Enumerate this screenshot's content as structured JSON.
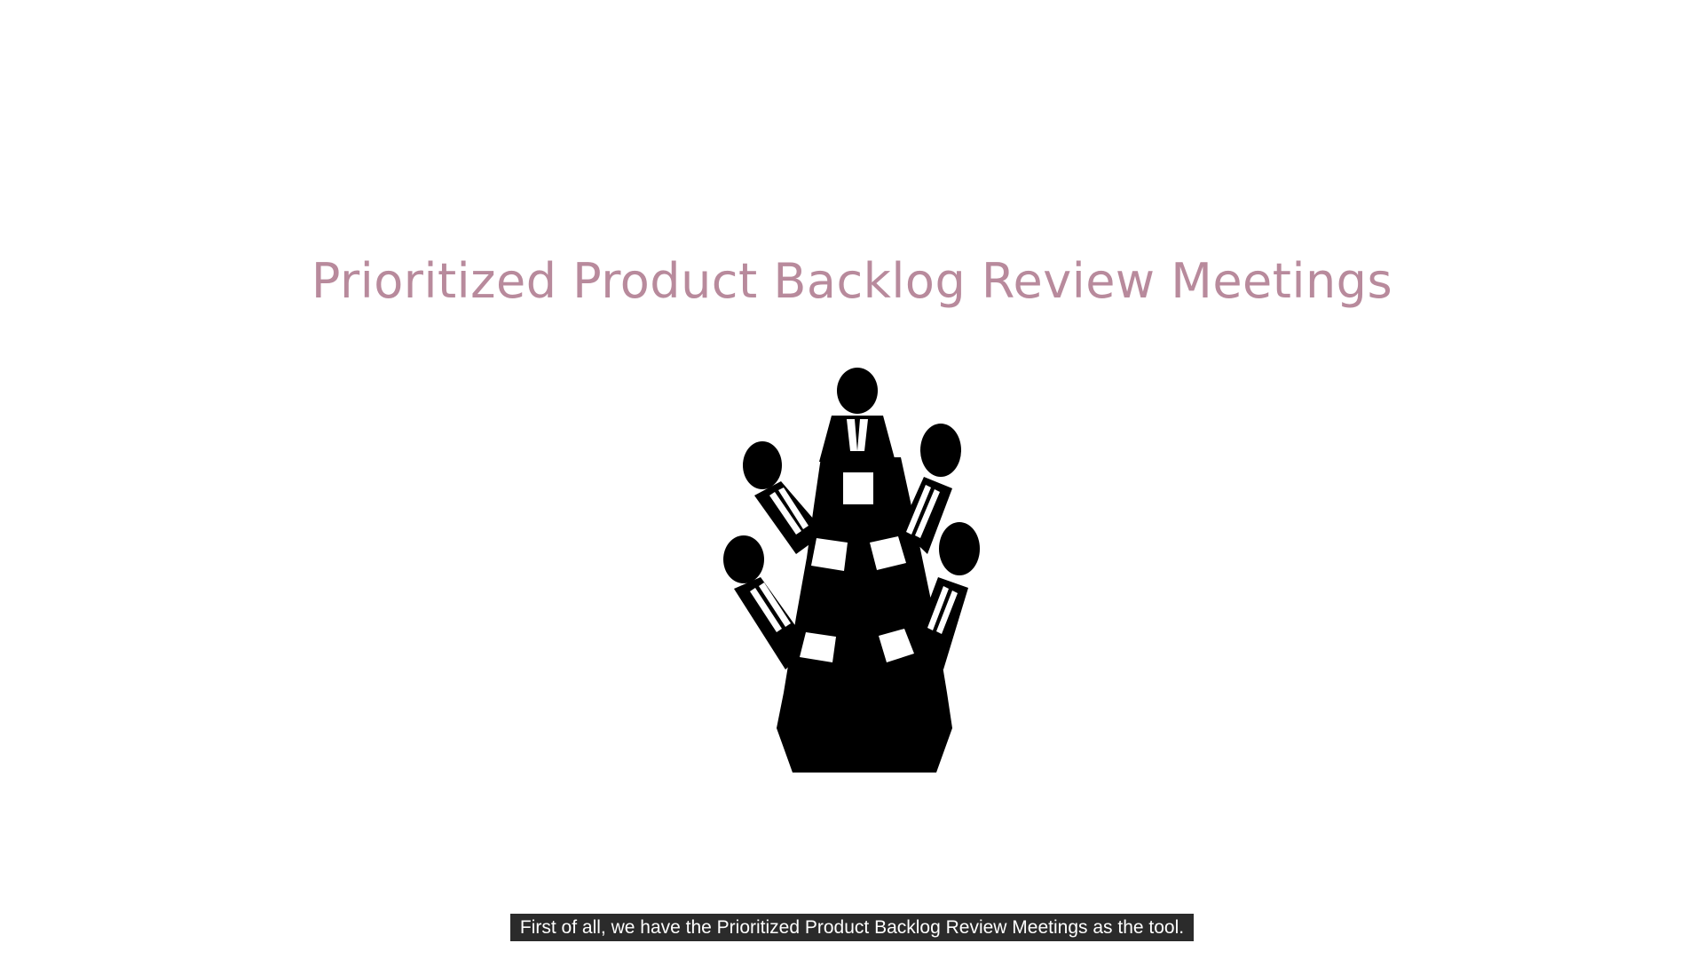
{
  "slide": {
    "title": "Prioritized Product Backlog Review Meetings",
    "title_color": "#b88a9c",
    "illustration_icon": "meeting-table-people-icon",
    "illustration_color": "#000000"
  },
  "caption": {
    "text": "First of all, we have the Prioritized Product Backlog Review Meetings as the tool."
  }
}
